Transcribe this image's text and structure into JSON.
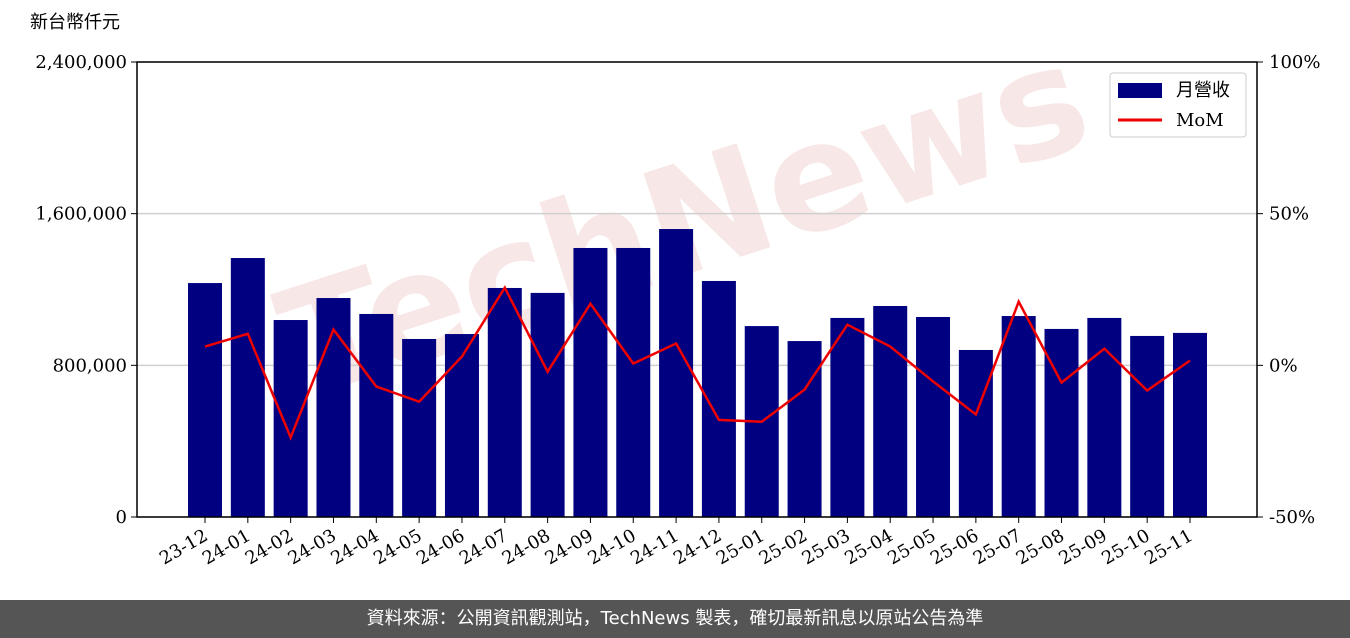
{
  "chart_data": {
    "type": "bar-line",
    "ylabel": "新台幣仟元",
    "watermark": "TechNews",
    "categories": [
      "23-12",
      "24-01",
      "24-02",
      "24-03",
      "24-04",
      "24-05",
      "24-06",
      "24-07",
      "24-08",
      "24-09",
      "24-10",
      "24-11",
      "24-12",
      "25-01",
      "25-02",
      "25-03",
      "25-04",
      "25-05",
      "25-06",
      "25-07",
      "25-08",
      "25-09",
      "25-10",
      "25-11"
    ],
    "series": [
      {
        "name": "月營收",
        "type": "bar",
        "color": "#000080",
        "values": [
          1234000,
          1366000,
          1039000,
          1155000,
          1071000,
          939000,
          965000,
          1208000,
          1182000,
          1419000,
          1419000,
          1519000,
          1245000,
          1007000,
          928000,
          1050000,
          1113000,
          1055000,
          881000,
          1060000,
          992000,
          1050000,
          955000,
          971000
        ]
      },
      {
        "name": "MoM",
        "type": "line",
        "axis": "y2",
        "color": "#ee0000",
        "values": [
          6.2,
          10.4,
          -23.8,
          11.8,
          -7.0,
          -12.0,
          2.9,
          25.6,
          -2.1,
          20.3,
          0.6,
          7.2,
          -18.0,
          -18.6,
          -8.0,
          13.4,
          6.2,
          -5.3,
          -16.2,
          21.0,
          -5.7,
          5.5,
          -8.3,
          1.6
        ]
      }
    ],
    "ylim": [
      0,
      2400000
    ],
    "yticks": [
      0,
      {
        "value": 800000,
        "label": "800,000"
      },
      {
        "value": 1600000,
        "label": "1,600,000"
      },
      {
        "value": 2400000,
        "label": "2,400,000"
      }
    ],
    "y2lim": [
      -50,
      100
    ],
    "y2ticks": [
      {
        "value": -50,
        "label": "-50%"
      },
      {
        "value": 0,
        "label": "0%"
      },
      {
        "value": 50,
        "label": "50%"
      },
      {
        "value": 100,
        "label": "100%"
      }
    ],
    "grid": true,
    "legend": "upper right",
    "footer": "資料來源：公開資訊觀測站，TechNews 製表，確切最新訊息以原站公告為準"
  }
}
